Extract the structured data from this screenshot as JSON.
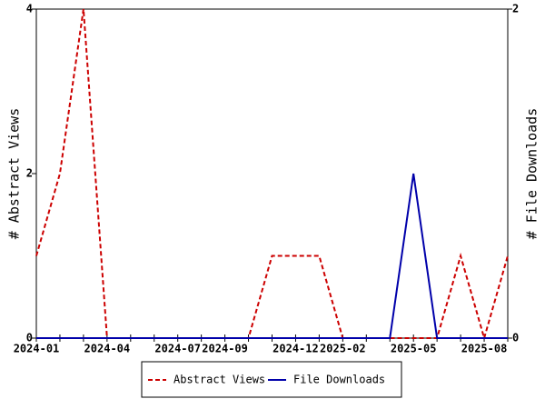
{
  "chart_data": {
    "type": "line",
    "categories": [
      "2024-01",
      null,
      null,
      "2024-04",
      null,
      null,
      "2024-07",
      null,
      "2024-09",
      null,
      null,
      "2024-12",
      null,
      "2025-02",
      null,
      null,
      "2025-05",
      null,
      null,
      "2025-08",
      null
    ],
    "series": [
      {
        "name": "Abstract Views",
        "color": "#cc0000",
        "dashed": true,
        "axis": "y",
        "values": [
          1,
          2,
          4,
          0,
          0,
          0,
          0,
          0,
          0,
          0,
          1,
          1,
          1,
          0,
          0,
          0,
          0,
          0,
          1,
          0,
          1
        ]
      },
      {
        "name": "File Downloads",
        "color": "#0000aa",
        "dashed": false,
        "axis": "y2",
        "values": [
          0,
          0,
          0,
          0,
          0,
          0,
          0,
          0,
          0,
          0,
          0,
          0,
          0,
          0,
          0,
          0,
          1,
          0,
          0,
          0,
          0
        ]
      }
    ],
    "y_label": "# Abstract Views",
    "y2_label": "# File Downloads",
    "ylim": [
      0,
      4
    ],
    "yticks": [
      0,
      2,
      4
    ],
    "y2lim": [
      0,
      2
    ],
    "y2ticks": [
      0,
      2
    ],
    "grid": false,
    "legend": "bottom"
  }
}
